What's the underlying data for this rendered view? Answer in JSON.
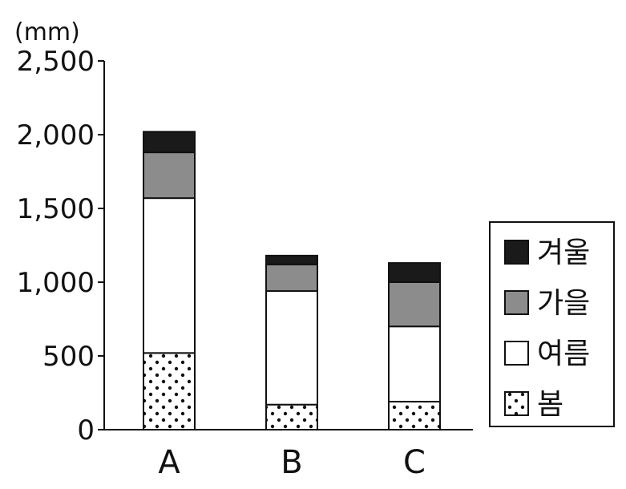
{
  "chart_data": {
    "type": "bar",
    "stacked": true,
    "unit_label": "(mm)",
    "categories": [
      "A",
      "B",
      "C"
    ],
    "series": [
      {
        "name": "봄",
        "values": [
          520,
          170,
          190
        ],
        "fill": "dots"
      },
      {
        "name": "여름",
        "values": [
          1050,
          770,
          510
        ],
        "fill": "#ffffff"
      },
      {
        "name": "가을",
        "values": [
          310,
          180,
          300
        ],
        "fill": "#8c8c8c"
      },
      {
        "name": "겨울",
        "values": [
          140,
          60,
          130
        ],
        "fill": "#1a1a1a"
      }
    ],
    "ylim": [
      0,
      2500
    ],
    "yticks": [
      "0",
      "500",
      "1,000",
      "1,500",
      "2,000",
      "2,500"
    ],
    "ytick_values": [
      0,
      500,
      1000,
      1500,
      2000,
      2500
    ],
    "legend_order": [
      "겨울",
      "가을",
      "여름",
      "봄"
    ],
    "legend_position": "right",
    "grid": false
  }
}
